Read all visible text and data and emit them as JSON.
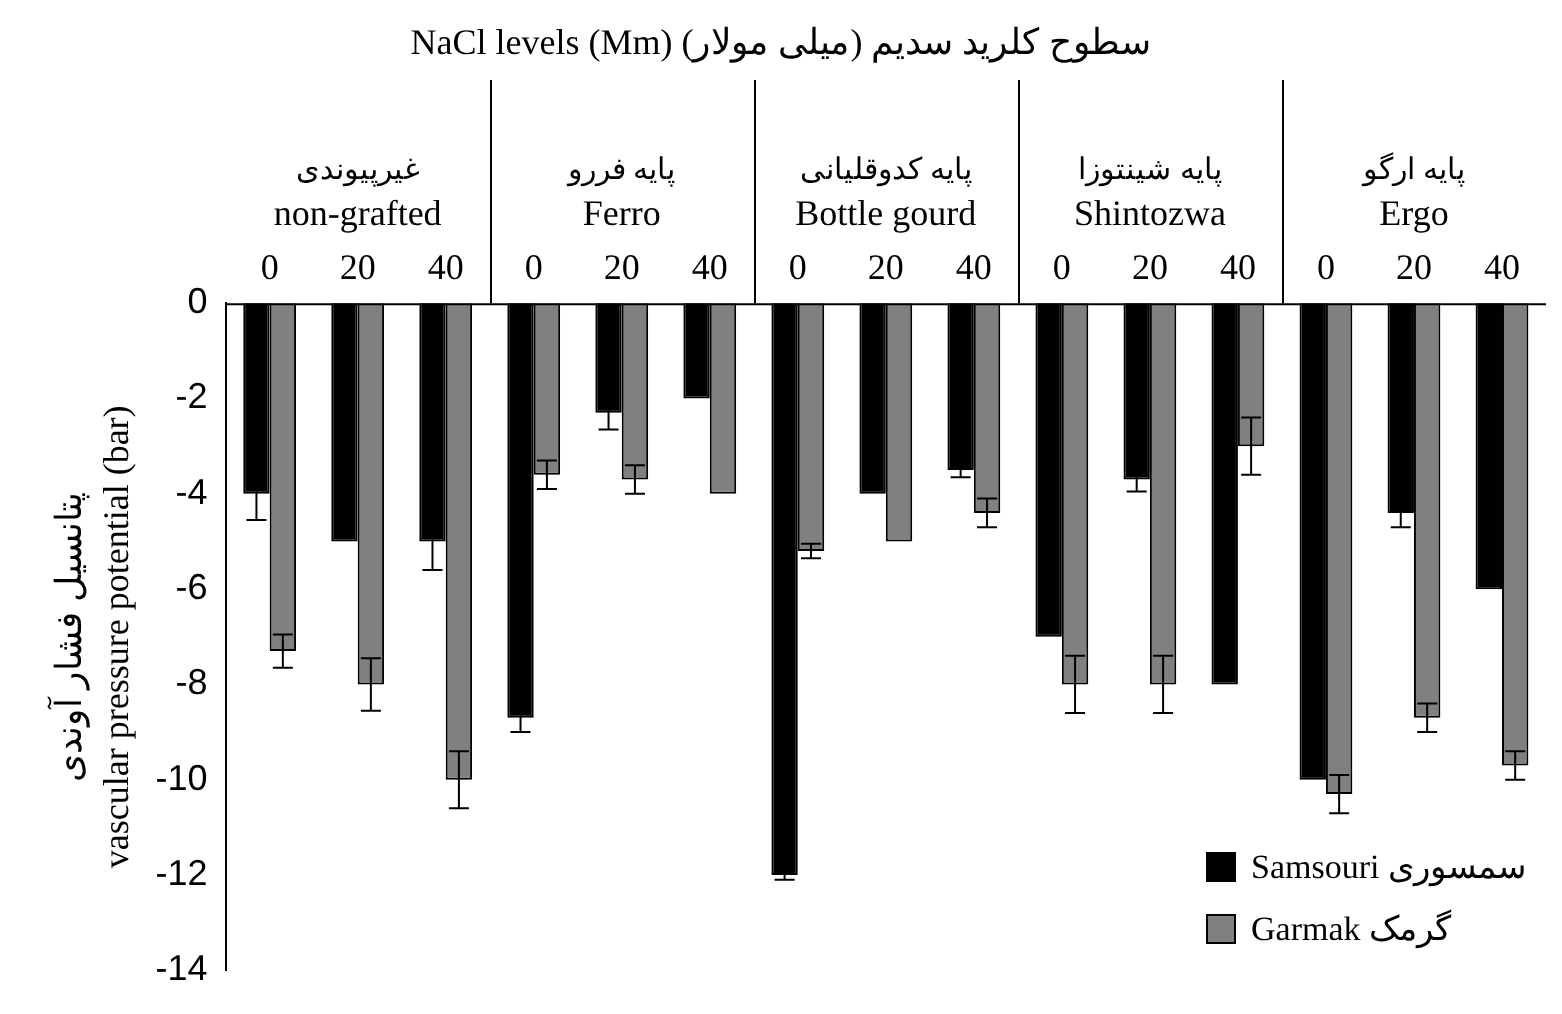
{
  "chart_data": {
    "type": "bar",
    "title": "سطوح کلرید سدیم (میلی مولار) NaCl levels (Mm)",
    "ylabel": "پتانسیل فشار آوندی\nvascular pressure potential (bar)",
    "categories": [
      "0",
      "20",
      "40",
      "0",
      "20",
      "40",
      "0",
      "20",
      "40",
      "0",
      "20",
      "40",
      "0",
      "20",
      "40"
    ],
    "annotations": [
      "غیرپیوندی",
      "non-grafted",
      "پایه فررو",
      "Ferro",
      "پایه کدوقلیانی",
      "Bottle gourd",
      "پایه شینتوزا",
      "Shintozwa",
      "پایه ارگو",
      "Ergo"
    ],
    "series": [
      {
        "name": "Samsouri سمسوری",
        "color": "#000000",
        "values": [
          -4,
          -5,
          -5,
          -8.7,
          -2.3,
          -2,
          -12,
          -4,
          -3.5,
          -7,
          -3.7,
          -8,
          -10,
          -4.4,
          -6
        ],
        "errors": [
          0.55,
          null,
          0.6,
          0.3,
          0.35,
          null,
          0.1,
          null,
          0.15,
          null,
          0.25,
          null,
          null,
          0.3,
          null
        ]
      },
      {
        "name": "Garmak گرمک",
        "color": "#808080",
        "values": [
          -7.3,
          -8,
          -10,
          -3.6,
          -3.7,
          -4,
          -5.2,
          -5,
          -4.4,
          -8,
          -8,
          -3,
          -10.3,
          -8.7,
          -9.7
        ],
        "errors": [
          0.35,
          0.55,
          0.6,
          0.3,
          0.3,
          null,
          0.15,
          null,
          0.3,
          0.6,
          0.6,
          0.6,
          0.4,
          0.3,
          0.3
        ]
      }
    ],
    "ylim": [
      -14,
      0
    ],
    "yticks": [
      0,
      -2,
      -4,
      -6,
      -8,
      -10,
      -12,
      -14
    ],
    "grid": false,
    "legend": "bottom right"
  }
}
